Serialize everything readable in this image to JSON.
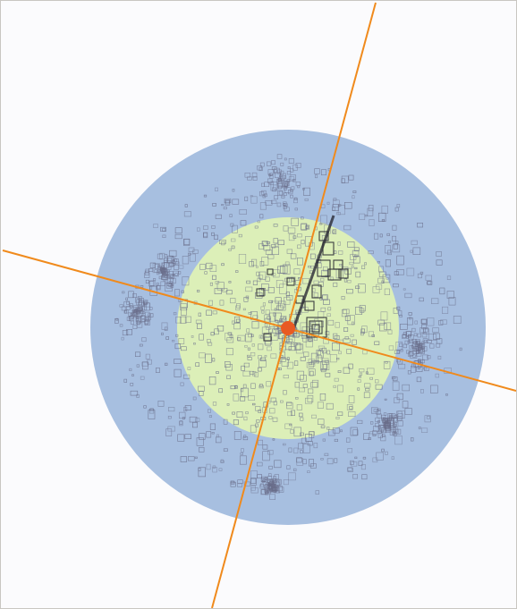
{
  "map": {
    "zones": [
      {
        "name": "outer-zone",
        "color": "#a7bfe0"
      },
      {
        "name": "inner-zone",
        "color": "#dcefb8"
      }
    ],
    "axes": [
      {
        "name": "north-south-axis",
        "color": "#f08a1c"
      },
      {
        "name": "east-west-axis",
        "color": "#f08a1c"
      }
    ],
    "center_marker": {
      "color": "#e85a23"
    },
    "building_color": "#6a6e8a",
    "monument_color": "#2b2b35",
    "background_color": "#fbfbfd"
  }
}
